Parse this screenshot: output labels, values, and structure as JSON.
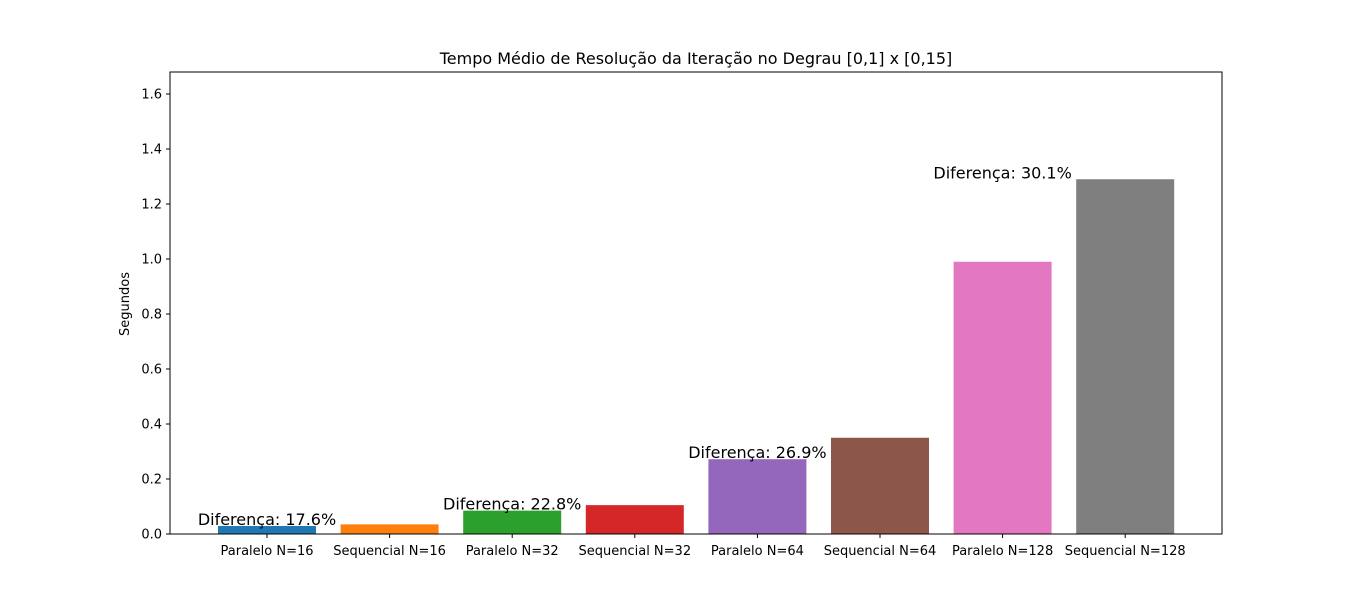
{
  "chart_data": {
    "type": "bar",
    "title": "Tempo Médio de Resolução da Iteração no Degrau [0,1] x [0,15]",
    "xlabel": "",
    "ylabel": "Segundos",
    "ylim": [
      0,
      1.68
    ],
    "yticks": [
      "0.0",
      "0.2",
      "0.4",
      "0.6",
      "0.8",
      "1.0",
      "1.2",
      "1.4",
      "1.6"
    ],
    "categories": [
      "Paralelo N=16",
      "Sequencial N=16",
      "Paralelo N=32",
      "Sequencial N=32",
      "Paralelo N=64",
      "Sequencial N=64",
      "Paralelo N=128",
      "Sequencial N=128"
    ],
    "values": [
      0.029,
      0.035,
      0.085,
      0.105,
      0.272,
      0.35,
      0.99,
      1.29
    ],
    "colors": [
      "#1f77b4",
      "#ff7f0e",
      "#2ca02c",
      "#d62728",
      "#9467bd",
      "#8c564b",
      "#e377c2",
      "#7f7f7f"
    ],
    "grid": false,
    "annotations": [
      {
        "text": "Diferença: 17.6%",
        "category_index": 0,
        "y": 0.029
      },
      {
        "text": "Diferença: 22.8%",
        "category_index": 2,
        "y": 0.085
      },
      {
        "text": "Diferença: 26.9%",
        "category_index": 4,
        "y": 0.272
      },
      {
        "text": "Diferença: 30.1%",
        "category_index": 6,
        "y": 1.29
      }
    ]
  }
}
